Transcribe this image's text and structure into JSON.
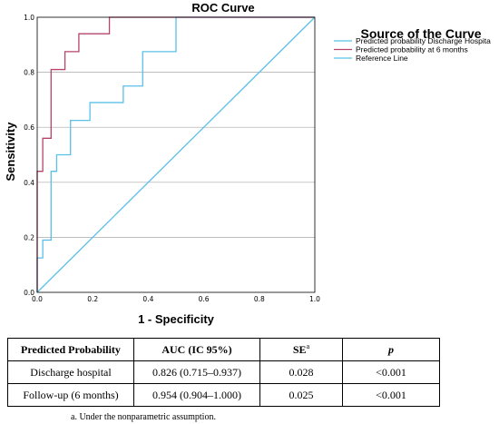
{
  "chart_data": {
    "type": "line",
    "title": "ROC Curve",
    "xlabel": "1 - Specificity",
    "ylabel": "Sensitivity",
    "xlim": [
      0.0,
      1.0
    ],
    "ylim": [
      0.0,
      1.0
    ],
    "x_ticks": [
      "0.0",
      "0.2",
      "0.4",
      "0.6",
      "0.8",
      "1.0"
    ],
    "y_ticks": [
      "0.0",
      "0.2",
      "0.4",
      "0.6",
      "0.8",
      "1.0"
    ],
    "grid": "horizontal",
    "legend_title": "Source of the Curve",
    "legend_position": "right",
    "series": [
      {
        "name": "Predicted probability Discharge Hospita",
        "color": "#5bc0e8",
        "points": [
          [
            0,
            0
          ],
          [
            0,
            0.125
          ],
          [
            0.02,
            0.125
          ],
          [
            0.02,
            0.19
          ],
          [
            0.05,
            0.19
          ],
          [
            0.05,
            0.44
          ],
          [
            0.07,
            0.44
          ],
          [
            0.07,
            0.5
          ],
          [
            0.12,
            0.5
          ],
          [
            0.12,
            0.625
          ],
          [
            0.19,
            0.625
          ],
          [
            0.19,
            0.69
          ],
          [
            0.31,
            0.69
          ],
          [
            0.31,
            0.75
          ],
          [
            0.38,
            0.75
          ],
          [
            0.38,
            0.875
          ],
          [
            0.5,
            0.875
          ],
          [
            0.5,
            1.0
          ],
          [
            1.0,
            1.0
          ]
        ]
      },
      {
        "name": "Predicted probability at 6 months",
        "color": "#b5446e",
        "points": [
          [
            0,
            0
          ],
          [
            0,
            0.44
          ],
          [
            0.02,
            0.44
          ],
          [
            0.02,
            0.56
          ],
          [
            0.05,
            0.56
          ],
          [
            0.05,
            0.81
          ],
          [
            0.1,
            0.81
          ],
          [
            0.1,
            0.875
          ],
          [
            0.15,
            0.875
          ],
          [
            0.15,
            0.94
          ],
          [
            0.26,
            0.94
          ],
          [
            0.26,
            1.0
          ],
          [
            1.0,
            1.0
          ]
        ]
      },
      {
        "name": "Reference Line",
        "color": "#5bc0e8",
        "points": [
          [
            0,
            0
          ],
          [
            1,
            1
          ]
        ]
      }
    ]
  },
  "table": {
    "headers": [
      "Predicted Probability",
      "AUC (IC 95%)",
      "SE",
      "p"
    ],
    "se_superscript": "a",
    "rows": [
      [
        "Discharge hospital",
        "0.826 (0.715–0.937)",
        "0.028",
        "<0.001"
      ],
      [
        "Follow-up (6 months)",
        "0.954 (0.904–1.000)",
        "0.025",
        "<0.001"
      ]
    ],
    "footnote": "a. Under the nonparametric assumption."
  }
}
